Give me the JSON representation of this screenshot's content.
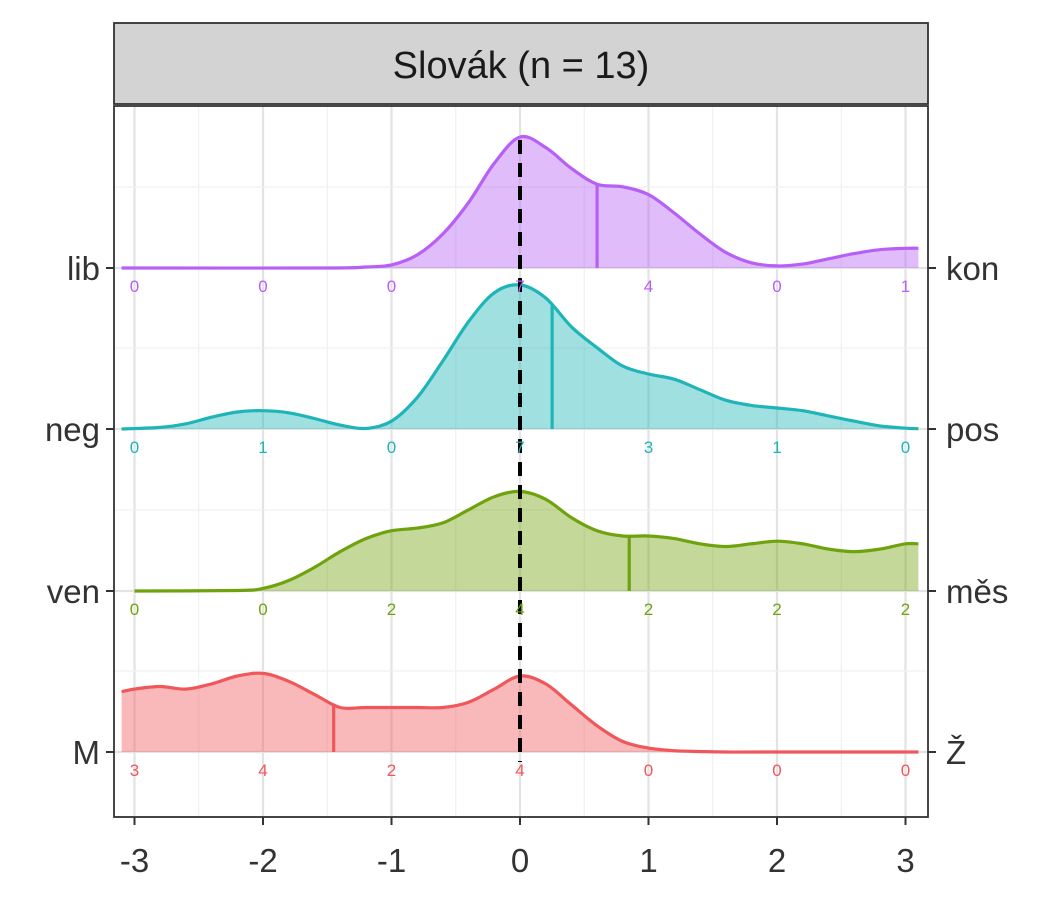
{
  "chart_data": {
    "type": "ridgeline",
    "title": "Slovák (n = 13)",
    "xlim": [
      -3.1,
      3.1
    ],
    "x_ticks": [
      -3,
      -2,
      -1,
      0,
      1,
      2,
      3
    ],
    "x_tick_labels": [
      "-3",
      "-2",
      "-1",
      "0",
      "1",
      "2",
      "3"
    ],
    "reference_line_x": 0,
    "count_positions": [
      -3,
      -2,
      -1,
      0,
      1,
      2,
      3
    ],
    "grid": true,
    "rows": [
      {
        "left_label": "lib",
        "right_label": "kon",
        "color": "#b660f5",
        "mean": 0.6,
        "counts": [
          0,
          0,
          0,
          7,
          4,
          0,
          1
        ],
        "density_x": [
          -3.1,
          -1.5,
          -1.2,
          -1.0,
          -0.8,
          -0.6,
          -0.4,
          -0.2,
          0.0,
          0.2,
          0.4,
          0.6,
          0.8,
          1.0,
          1.2,
          1.4,
          1.6,
          1.8,
          2.0,
          2.2,
          2.4,
          2.6,
          2.8,
          3.0,
          3.1
        ],
        "density_y": [
          0,
          0,
          0.004,
          0.012,
          0.05,
          0.13,
          0.25,
          0.4,
          0.5,
          0.46,
          0.38,
          0.32,
          0.31,
          0.28,
          0.21,
          0.13,
          0.06,
          0.02,
          0.008,
          0.015,
          0.035,
          0.055,
          0.07,
          0.075,
          0.075
        ]
      },
      {
        "left_label": "neg",
        "right_label": "pos",
        "color": "#1fb5b8",
        "mean": 0.25,
        "counts": [
          0,
          1,
          0,
          7,
          3,
          1,
          0
        ],
        "density_x": [
          -3.1,
          -2.8,
          -2.6,
          -2.4,
          -2.2,
          -2.0,
          -1.8,
          -1.6,
          -1.4,
          -1.2,
          -1.0,
          -0.8,
          -0.6,
          -0.4,
          -0.2,
          0.0,
          0.2,
          0.4,
          0.6,
          0.8,
          1.0,
          1.2,
          1.4,
          1.6,
          1.8,
          2.0,
          2.2,
          2.4,
          2.6,
          2.8,
          3.0,
          3.1
        ],
        "density_y": [
          0,
          0.006,
          0.02,
          0.045,
          0.065,
          0.07,
          0.062,
          0.04,
          0.015,
          0.002,
          0.03,
          0.12,
          0.26,
          0.41,
          0.52,
          0.55,
          0.5,
          0.39,
          0.31,
          0.24,
          0.21,
          0.19,
          0.15,
          0.11,
          0.09,
          0.08,
          0.07,
          0.05,
          0.03,
          0.012,
          0.003,
          0.001
        ]
      },
      {
        "left_label": "ven",
        "right_label": "měs",
        "color": "#6fa30d",
        "mean": 0.85,
        "counts": [
          0,
          0,
          2,
          4,
          2,
          2,
          2
        ],
        "density_x": [
          -3.0,
          -2.2,
          -2.0,
          -1.8,
          -1.6,
          -1.4,
          -1.2,
          -1.0,
          -0.8,
          -0.6,
          -0.4,
          -0.2,
          0.0,
          0.2,
          0.4,
          0.6,
          0.8,
          1.0,
          1.2,
          1.4,
          1.6,
          1.8,
          2.0,
          2.2,
          2.4,
          2.6,
          2.8,
          3.0,
          3.1
        ],
        "density_y": [
          0,
          0.002,
          0.01,
          0.04,
          0.09,
          0.15,
          0.2,
          0.23,
          0.24,
          0.26,
          0.31,
          0.36,
          0.38,
          0.35,
          0.28,
          0.23,
          0.21,
          0.21,
          0.2,
          0.18,
          0.17,
          0.18,
          0.19,
          0.18,
          0.16,
          0.15,
          0.16,
          0.18,
          0.18
        ]
      },
      {
        "left_label": "M",
        "right_label": "Ž",
        "color": "#f0575a",
        "mean": -1.45,
        "counts": [
          3,
          4,
          2,
          4,
          0,
          0,
          0
        ],
        "density_x": [
          -3.1,
          -3.0,
          -2.8,
          -2.6,
          -2.4,
          -2.2,
          -2.0,
          -1.8,
          -1.6,
          -1.4,
          -1.2,
          -1.0,
          -0.8,
          -0.6,
          -0.4,
          -0.2,
          0.0,
          0.2,
          0.4,
          0.6,
          0.8,
          1.0,
          1.2,
          1.4,
          1.6,
          2.0,
          3.1
        ],
        "density_y": [
          0.23,
          0.24,
          0.25,
          0.24,
          0.26,
          0.29,
          0.3,
          0.27,
          0.22,
          0.17,
          0.17,
          0.17,
          0.17,
          0.17,
          0.19,
          0.24,
          0.29,
          0.26,
          0.18,
          0.1,
          0.04,
          0.015,
          0.005,
          0.002,
          0,
          0,
          0
        ]
      }
    ]
  }
}
